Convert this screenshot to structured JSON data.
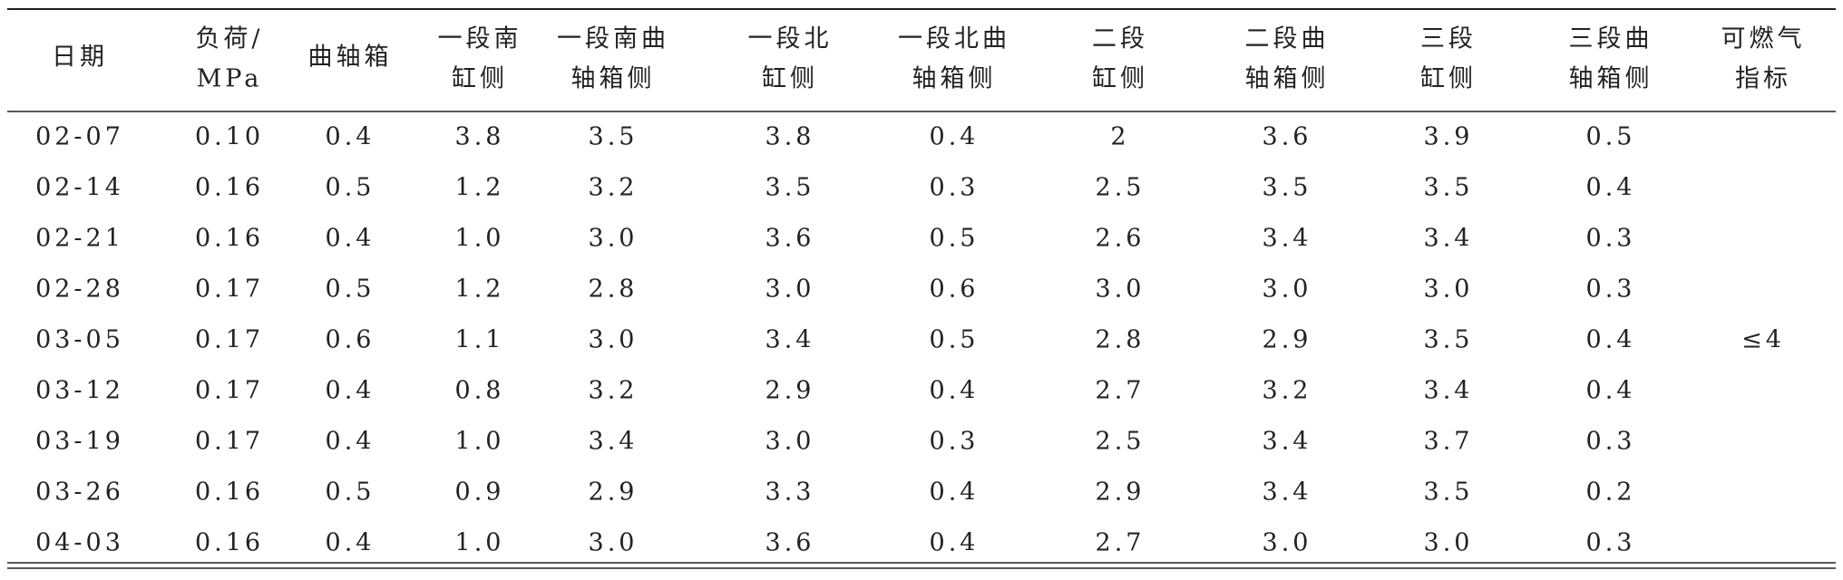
{
  "table": {
    "header": [
      [
        "日期"
      ],
      [
        "负荷/",
        "MPa"
      ],
      [
        "曲轴箱"
      ],
      [
        "一段南",
        "缸侧"
      ],
      [
        "一段南曲",
        "轴箱侧"
      ],
      [
        "一段北",
        "缸侧"
      ],
      [
        "一段北曲",
        "轴箱侧"
      ],
      [
        "二段",
        "缸侧"
      ],
      [
        "二段曲",
        "轴箱侧"
      ],
      [
        "三段",
        "缸侧"
      ],
      [
        "三段曲",
        "轴箱侧"
      ],
      [
        "可燃气",
        "指标"
      ]
    ],
    "rows": [
      [
        "02-07",
        "0.10",
        "0.4",
        "3.8",
        "3.5",
        "3.8",
        "0.4",
        "2",
        "3.6",
        "3.9",
        "0.5"
      ],
      [
        "02-14",
        "0.16",
        "0.5",
        "1.2",
        "3.2",
        "3.5",
        "0.3",
        "2.5",
        "3.5",
        "3.5",
        "0.4"
      ],
      [
        "02-21",
        "0.16",
        "0.4",
        "1.0",
        "3.0",
        "3.6",
        "0.5",
        "2.6",
        "3.4",
        "3.4",
        "0.3"
      ],
      [
        "02-28",
        "0.17",
        "0.5",
        "1.2",
        "2.8",
        "3.0",
        "0.6",
        "3.0",
        "3.0",
        "3.0",
        "0.3"
      ],
      [
        "03-05",
        "0.17",
        "0.6",
        "1.1",
        "3.0",
        "3.4",
        "0.5",
        "2.8",
        "2.9",
        "3.5",
        "0.4"
      ],
      [
        "03-12",
        "0.17",
        "0.4",
        "0.8",
        "3.2",
        "2.9",
        "0.4",
        "2.7",
        "3.2",
        "3.4",
        "0.4"
      ],
      [
        "03-19",
        "0.17",
        "0.4",
        "1.0",
        "3.4",
        "3.0",
        "0.3",
        "2.5",
        "3.4",
        "3.7",
        "0.3"
      ],
      [
        "03-26",
        "0.16",
        "0.5",
        "0.9",
        "2.9",
        "3.3",
        "0.4",
        "2.9",
        "3.4",
        "3.5",
        "0.2"
      ],
      [
        "04-03",
        "0.16",
        "0.4",
        "1.0",
        "3.0",
        "3.6",
        "0.4",
        "2.7",
        "3.0",
        "3.0",
        "0.3"
      ]
    ],
    "merged_value": "≤4"
  }
}
